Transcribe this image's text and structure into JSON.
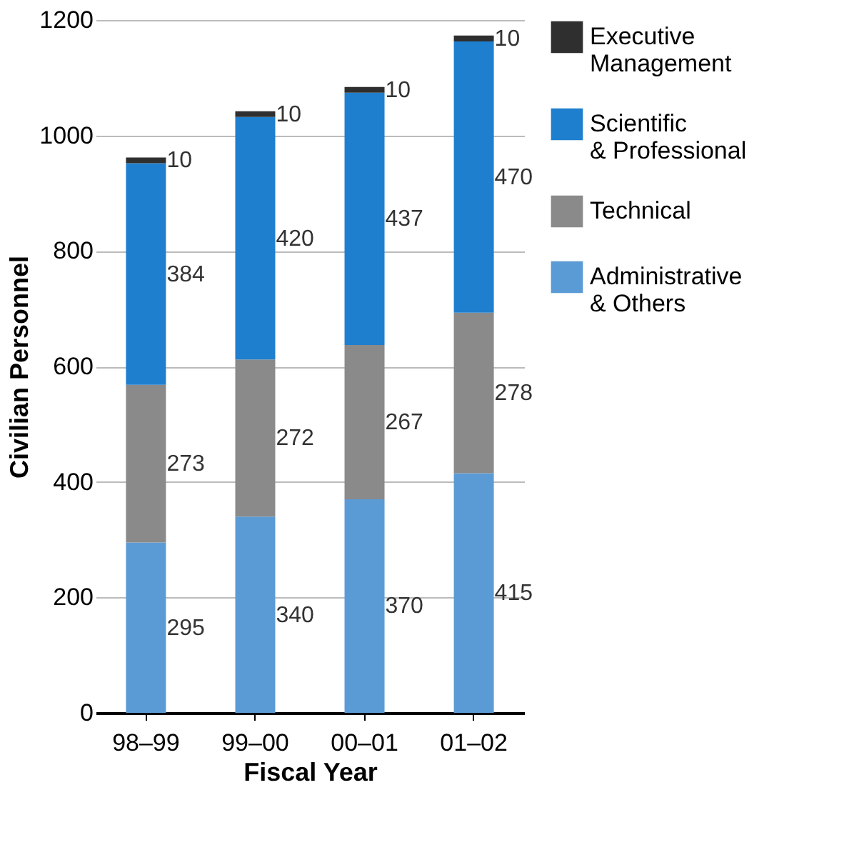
{
  "chart_data": {
    "type": "bar",
    "stacked": true,
    "xlabel": "Fiscal Year",
    "ylabel": "Civilian Personnel",
    "categories": [
      "98–99",
      "99–00",
      "00–01",
      "01–02"
    ],
    "series": [
      {
        "name": "Administrative & Others",
        "color": "#5b9bd5",
        "values": [
          295,
          340,
          370,
          415
        ]
      },
      {
        "name": "Technical",
        "color": "#8a8a8a",
        "values": [
          273,
          272,
          267,
          278
        ]
      },
      {
        "name": "Scientific & Professional",
        "color": "#1f7fcf",
        "values": [
          384,
          420,
          437,
          470
        ]
      },
      {
        "name": "Executive Management",
        "color": "#2f2f2f",
        "values": [
          10,
          10,
          10,
          10
        ]
      }
    ],
    "ylim": [
      0,
      1200
    ],
    "yticks": [
      0,
      200,
      400,
      600,
      800,
      1000,
      1200
    ],
    "grid": "y",
    "legend": "top right",
    "data_labels": true
  }
}
